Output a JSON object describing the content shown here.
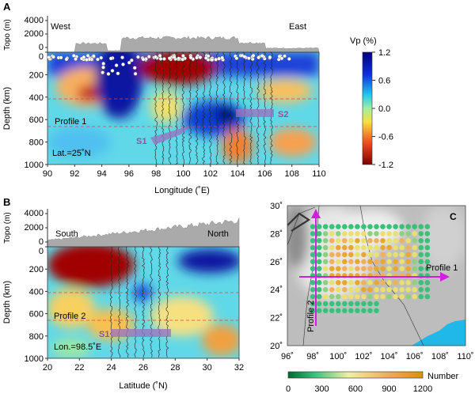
{
  "chart_data": [
    {
      "panel": "A",
      "type": "heatmap",
      "title": "Profile 1",
      "annotation": "Lat.=25˚N",
      "xlabel": "Longitude (˚E)",
      "ylabel": "Depth (km)",
      "topo_label": "Topo (m)",
      "xlim": [
        90,
        110
      ],
      "ylim": [
        0,
        1000
      ],
      "xticks": [
        "90",
        "92",
        "94",
        "96",
        "98",
        "100",
        "102",
        "104",
        "106",
        "108",
        "110"
      ],
      "yticks": [
        "0",
        "200",
        "400",
        "600",
        "800",
        "1000"
      ],
      "topo_ticks": [
        "4000",
        "2000",
        "0"
      ],
      "left_label": "West",
      "right_label": "East",
      "discontinuities_km": [
        410,
        660
      ],
      "slab_labels": [
        "S1",
        "S2"
      ]
    },
    {
      "panel": "B",
      "type": "heatmap",
      "title": "Profile 2",
      "annotation": "Lon.=98.5˚E",
      "xlabel": "Latitude (˚N)",
      "ylabel": "Depth (km)",
      "topo_label": "Topo (m)",
      "xlim": [
        20,
        32
      ],
      "ylim": [
        0,
        1000
      ],
      "xticks": [
        "20",
        "22",
        "24",
        "26",
        "28",
        "30",
        "32"
      ],
      "yticks": [
        "0",
        "200",
        "400",
        "600",
        "800",
        "1000"
      ],
      "topo_ticks": [
        "4000",
        "2000",
        "0"
      ],
      "left_label": "South",
      "right_label": "North",
      "discontinuities_km": [
        410,
        660
      ],
      "slab_labels": [
        "S1"
      ]
    },
    {
      "panel": "C",
      "type": "scatter",
      "xlim": [
        96,
        110
      ],
      "ylim": [
        20,
        30
      ],
      "xticks": [
        "96˚",
        "98˚",
        "100˚",
        "102˚",
        "104˚",
        "106˚",
        "108˚",
        "110˚"
      ],
      "yticks": [
        "20˚",
        "22˚",
        "24˚",
        "26˚",
        "28˚",
        "30˚"
      ],
      "profiles": [
        "Profile 1",
        "Profile 2"
      ],
      "grid_lon_range": [
        98,
        107
      ],
      "grid_lat_range": [
        22,
        29
      ],
      "grid_step_deg": 0.5,
      "colorbar_label": "Number",
      "colorbar_ticks": [
        "0",
        "300",
        "600",
        "900",
        "1200"
      ],
      "colorbar_range": [
        0,
        1200
      ]
    }
  ],
  "vp_colorbar": {
    "label": "Vp (%)",
    "ticks": [
      "1.2",
      "0.6",
      "0.0",
      "-0.6",
      "-1.2"
    ],
    "range": [
      -1.2,
      1.2
    ]
  },
  "panel_labels": [
    "A",
    "B",
    "C"
  ],
  "colors": {
    "slab": "#9b6fc0",
    "profile_arrow": "#d21ee0",
    "sea": "#20b8e8",
    "dashed": "#e04040"
  }
}
